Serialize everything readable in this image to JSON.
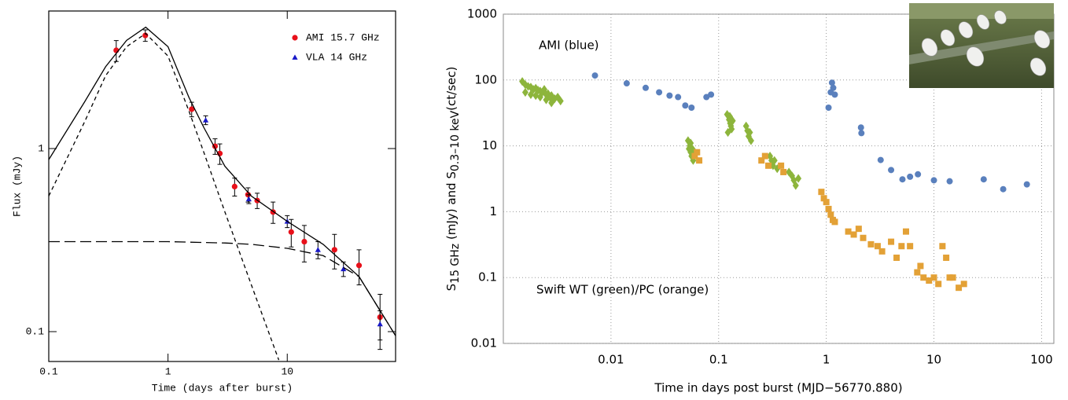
{
  "chart_data": [
    {
      "type": "scatter",
      "x_label": "Time (days after burst)",
      "y_label": "Flux (mJy)",
      "log_x": true,
      "log_y": true,
      "xlim": [
        0.1,
        81
      ],
      "ylim": [
        0.0687,
        5.64
      ],
      "xticks": [
        0.1,
        1,
        10
      ],
      "yticks": [
        0.1,
        1
      ],
      "grid": false,
      "legend": "upper right",
      "series": [
        {
          "name": "AMI 15.7 GHz",
          "color": "#e8101a",
          "marker": "circle",
          "x": [
            0.368,
            0.645,
            1.58,
            2.48,
            2.72,
            3.62,
            4.69,
            5.6,
            7.6,
            10.8,
            13.9,
            24.9,
            40,
            60
          ],
          "values": [
            3.44,
            4.15,
            1.64,
            1.03,
            0.94,
            0.62,
            0.56,
            0.52,
            0.45,
            0.35,
            0.31,
            0.28,
            0.23,
            0.12
          ],
          "errors": [
            0.45,
            0.3,
            0.15,
            0.1,
            0.12,
            0.07,
            0.05,
            0.05,
            0.06,
            0.06,
            0.07,
            0.06,
            0.05,
            0.04
          ]
        },
        {
          "name": "VLA 14 GHz",
          "color": "#1818c8",
          "marker": "triangle",
          "x": [
            2.07,
            4.76,
            10,
            18.1,
            29.6,
            60
          ],
          "values": [
            1.43,
            0.53,
            0.4,
            0.28,
            0.22,
            0.11
          ],
          "errors": [
            0.08,
            0.03,
            0.03,
            0.03,
            0.02,
            0.02
          ]
        },
        {
          "color": "#000000",
          "marker": "none",
          "dash": "solid",
          "x": [
            0.1,
            0.2,
            0.3,
            0.45,
            0.65,
            1,
            1.5,
            2,
            3,
            5,
            10,
            20,
            40,
            81
          ],
          "values": [
            0.87,
            1.8,
            2.8,
            3.9,
            4.6,
            3.6,
            1.9,
            1.3,
            0.8,
            0.55,
            0.4,
            0.3,
            0.2,
            0.095
          ]
        },
        {
          "color": "#000000",
          "marker": "none",
          "dash": "short",
          "x": [
            0.1,
            0.2,
            0.3,
            0.45,
            0.65,
            1,
            1.5,
            2,
            3,
            5,
            8.5
          ],
          "values": [
            0.55,
            1.4,
            2.5,
            3.6,
            4.25,
            3.2,
            1.6,
            0.95,
            0.45,
            0.18,
            0.07
          ]
        },
        {
          "color": "#000000",
          "marker": "none",
          "dash": "long",
          "x": [
            0.1,
            1,
            3,
            5,
            10,
            20,
            40,
            81
          ],
          "values": [
            0.31,
            0.31,
            0.305,
            0.3,
            0.285,
            0.26,
            0.2,
            0.095
          ]
        }
      ]
    },
    {
      "type": "scatter",
      "x_label": "Time in days post burst (MJD−56770.880)",
      "y_label": [
        {
          "text": "S"
        },
        {
          "sub": "15 GHz"
        },
        {
          "text": " (mJy) and "
        },
        {
          "text": "S"
        },
        {
          "sub": "0.3–10 keV"
        },
        {
          "text": "(ct/sec)"
        }
      ],
      "log_x": true,
      "log_y": true,
      "xlim": [
        0.001,
        130
      ],
      "ylim": [
        0.01,
        1000
      ],
      "xticks": [
        0.01,
        0.1,
        1,
        10,
        100
      ],
      "yticks": [
        0.01,
        0.1,
        1,
        10,
        100,
        1000
      ],
      "grid": true,
      "annotations": [
        "AMI (blue)",
        "Swift WT (green)/PC (orange)"
      ],
      "series": [
        {
          "color": "#5a80bd",
          "marker": "circle",
          "x": [
            0.0071,
            0.014,
            0.021,
            0.028,
            0.035,
            0.042,
            0.049,
            0.056,
            0.077,
            0.085,
            1.05,
            1.1,
            1.13,
            1.16,
            1.2,
            2.1,
            2.12,
            3.2,
            4.0,
            5.1,
            6.0,
            7.1,
            10,
            14,
            29,
            44,
            73
          ],
          "values": [
            117,
            89,
            76,
            65,
            58,
            55,
            41,
            38,
            55,
            60,
            38,
            65,
            91,
            76,
            60,
            19,
            15.6,
            6.1,
            4.3,
            3.1,
            3.4,
            3.7,
            3.0,
            2.9,
            3.1,
            2.2,
            2.6
          ]
        },
        {
          "color": "#8db53c",
          "marker": "diamond",
          "x": [
            0.0015,
            0.0016,
            0.0017,
            0.0018,
            0.0019,
            0.002,
            0.0021,
            0.0022,
            0.0023,
            0.0024,
            0.0025,
            0.0026,
            0.0027,
            0.0028,
            0.0029,
            0.003,
            0.0032,
            0.0034,
            0.0016,
            0.0018,
            0.002,
            0.0022,
            0.0025,
            0.0028,
            0.052,
            0.054,
            0.055,
            0.056,
            0.057,
            0.058,
            0.06,
            0.055,
            0.053,
            0.12,
            0.125,
            0.128,
            0.13,
            0.132,
            0.135,
            0.127,
            0.122,
            0.18,
            0.185,
            0.19,
            0.195,
            0.2,
            0.3,
            0.31,
            0.32,
            0.33,
            0.35,
            0.45,
            0.48,
            0.5,
            0.52,
            0.55
          ],
          "values": [
            95,
            85,
            80,
            78,
            72,
            75,
            70,
            68,
            65,
            72,
            60,
            62,
            55,
            58,
            50,
            52,
            55,
            48,
            65,
            60,
            58,
            55,
            50,
            45,
            12,
            10,
            8,
            7,
            9,
            6,
            8,
            11,
            9,
            30,
            25,
            22,
            20,
            18,
            24,
            28,
            16,
            20,
            17,
            14,
            16,
            12,
            7,
            6,
            5,
            6,
            4.5,
            4,
            3.5,
            3,
            2.5,
            3.2
          ]
        },
        {
          "color": "#e3a136",
          "marker": "square",
          "x": [
            0.06,
            0.063,
            0.066,
            0.25,
            0.27,
            0.29,
            0.38,
            0.4,
            0.9,
            0.95,
            1.0,
            1.05,
            1.1,
            1.15,
            1.2,
            1.6,
            1.8,
            2,
            2.2,
            2.6,
            3,
            3.3,
            4,
            4.5,
            5,
            5.5,
            6,
            7,
            7.5,
            8,
            9,
            10,
            11,
            12,
            13,
            14,
            15,
            17,
            19
          ],
          "values": [
            7,
            8,
            6,
            6,
            7,
            5,
            5,
            4,
            2,
            1.6,
            1.4,
            1.1,
            0.9,
            0.75,
            0.7,
            0.5,
            0.45,
            0.55,
            0.4,
            0.32,
            0.3,
            0.25,
            0.35,
            0.2,
            0.3,
            0.5,
            0.3,
            0.12,
            0.15,
            0.1,
            0.09,
            0.1,
            0.08,
            0.3,
            0.2,
            0.1,
            0.1,
            0.07,
            0.08
          ]
        }
      ]
    }
  ]
}
